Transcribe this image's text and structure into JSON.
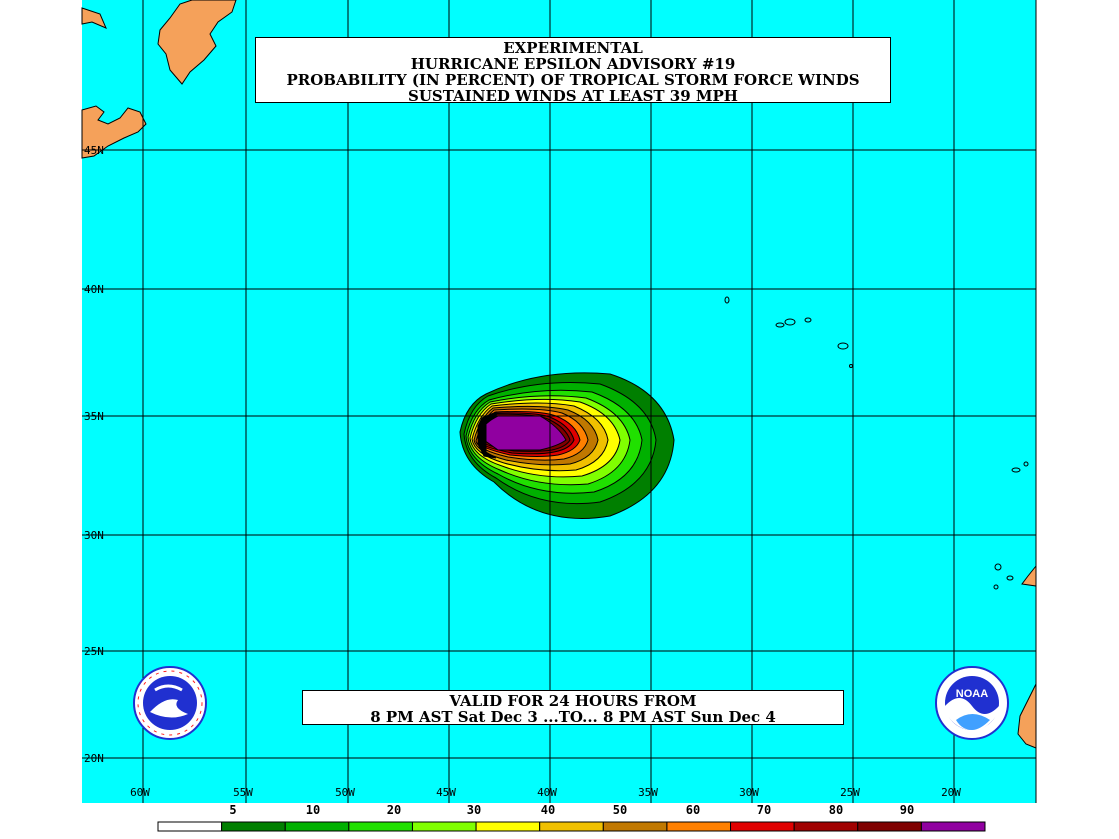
{
  "title": {
    "line1": "EXPERIMENTAL",
    "line2": "HURRICANE EPSILON ADVISORY #19",
    "line3": "PROBABILITY (IN PERCENT) OF TROPICAL STORM FORCE WINDS",
    "line4": "SUSTAINED WINDS AT LEAST 39 MPH"
  },
  "valid": {
    "line1": "VALID FOR 24 HOURS FROM",
    "line2": "8 PM AST Sat Dec 3 ...TO... 8 PM AST Sun Dec 4"
  },
  "lat_labels": [
    "45N",
    "40N",
    "35N",
    "30N",
    "25N",
    "20N"
  ],
  "lon_labels": [
    "60W",
    "55W",
    "50W",
    "45W",
    "40W",
    "35W",
    "30W",
    "25W",
    "20W"
  ],
  "colorbar": {
    "labels": [
      "5",
      "10",
      "20",
      "30",
      "40",
      "50",
      "60",
      "70",
      "80",
      "90"
    ],
    "colors": [
      "#ffffff",
      "#007f00",
      "#00b000",
      "#20e000",
      "#80ff00",
      "#ffff00",
      "#f0c000",
      "#c07800",
      "#ff8000",
      "#e00000",
      "#a00000",
      "#7f0000",
      "#9000a0"
    ]
  },
  "colors": {
    "ocean": "#00ffff",
    "land": "#f5a15a",
    "grid": "#000000"
  },
  "logos": {
    "nws": "nws-logo",
    "noaa": "noaa-logo",
    "noaa_text": "NOAA"
  }
}
